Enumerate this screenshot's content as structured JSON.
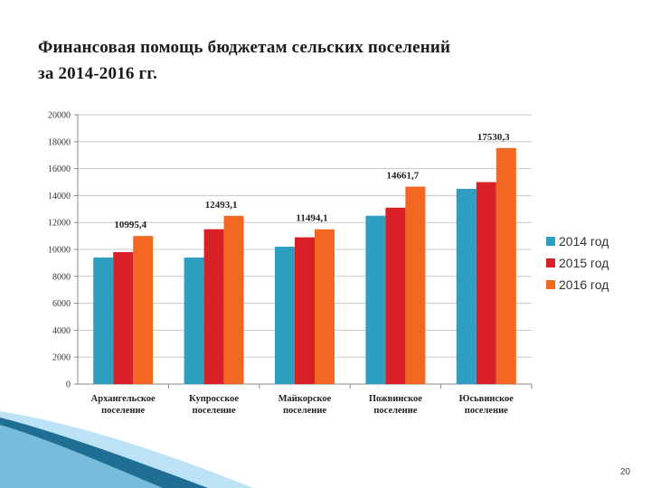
{
  "slide": {
    "title_line1": "Финансовая помощь бюджетам сельских поселений",
    "title_line2": "за 2014-2016 гг.",
    "page_number": "20"
  },
  "chart_data": {
    "type": "bar",
    "title": "",
    "xlabel": "",
    "ylabel": "",
    "ylim": [
      0,
      20000
    ],
    "yticks": [
      0,
      2000,
      4000,
      6000,
      8000,
      10000,
      12000,
      14000,
      16000,
      18000,
      20000
    ],
    "ytick_labels": [
      "0",
      "2000",
      "4000",
      "6000",
      "8000",
      "10000",
      "12000",
      "14000",
      "16000",
      "18000",
      "20000"
    ],
    "grid": true,
    "legend_position": "right",
    "categories": [
      [
        "Архангельское",
        "поселение"
      ],
      [
        "Купросское",
        "поселение"
      ],
      [
        "Майкорское",
        "поселение"
      ],
      [
        "Пожвинское",
        "поселение"
      ],
      [
        "Юсьвинское",
        "поселение"
      ]
    ],
    "series": [
      {
        "name": "2014 год",
        "color": "#2E9FC0",
        "values": [
          9400,
          9400,
          10200,
          12500,
          14500
        ]
      },
      {
        "name": "2015 год",
        "color": "#D92027",
        "values": [
          9800,
          11500,
          10900,
          13100,
          15000
        ]
      },
      {
        "name": "2016 год",
        "color": "#F26722",
        "values": [
          10995.4,
          12493.1,
          11494.1,
          14661.7,
          17530.3
        ]
      }
    ],
    "data_labels": [
      "10995,4",
      "12493,1",
      "11494,1",
      "14661,7",
      "17530,3"
    ],
    "data_label_series": 2
  },
  "decoration": {
    "wave_color_dark": "#1F6E93",
    "wave_color_light": "#8FD0EE"
  }
}
